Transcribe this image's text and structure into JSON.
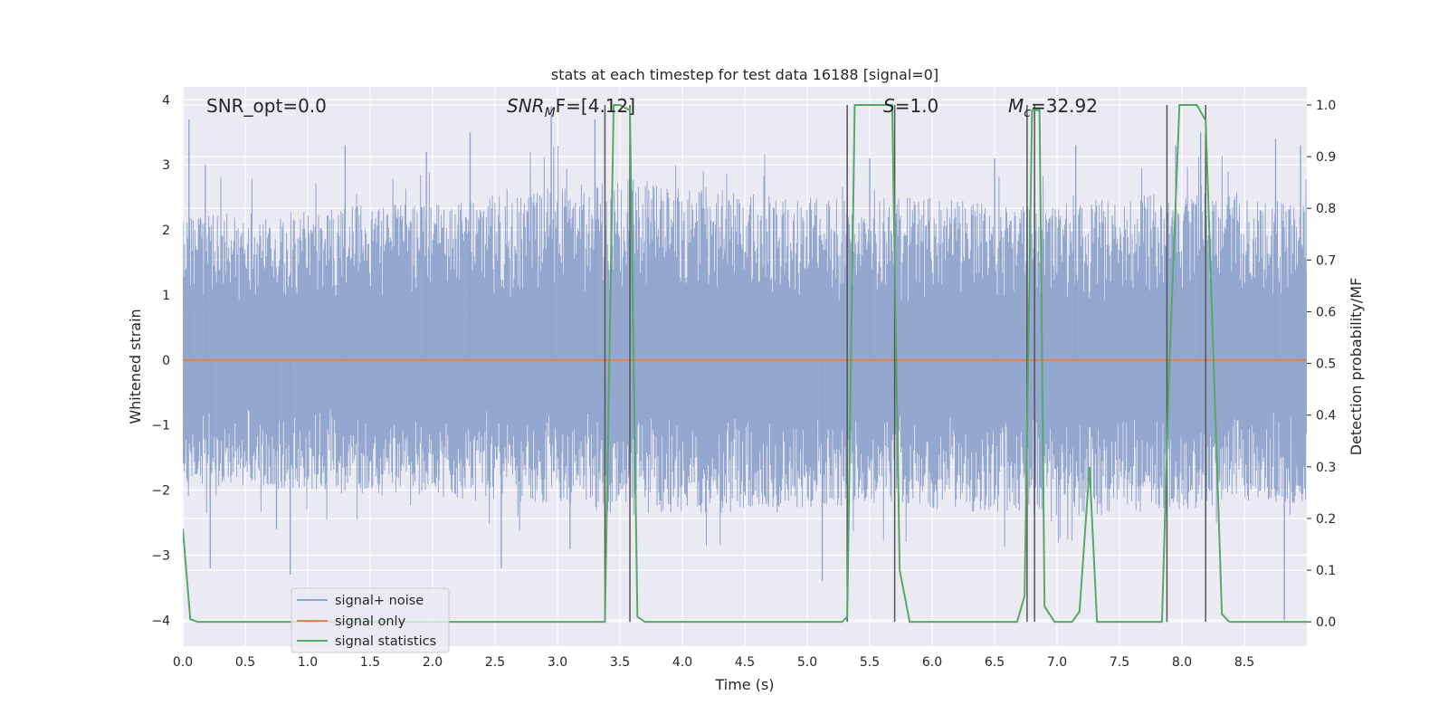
{
  "chart_data": {
    "type": "line",
    "title": "stats at each timestep for test data 16188 [signal=0]",
    "xlabel": "Time (s)",
    "ylabel_left": "Whitened strain",
    "ylabel_right": "Detection probability/MF",
    "xlim": [
      0.0,
      9.0
    ],
    "ylim_left": [
      -4.4,
      4.2
    ],
    "ylim_right": [
      -0.047,
      1.035
    ],
    "x_ticks": [
      "0.0",
      "0.5",
      "1.0",
      "1.5",
      "2.0",
      "2.5",
      "3.0",
      "3.5",
      "4.0",
      "4.5",
      "5.0",
      "5.5",
      "6.0",
      "6.5",
      "7.0",
      "7.5",
      "8.0",
      "8.5"
    ],
    "y_left_ticks": [
      "4",
      "3",
      "2",
      "1",
      "0",
      "−1",
      "−2",
      "−3",
      "−4"
    ],
    "y_right_ticks": [
      "1.0",
      "0.9",
      "0.8",
      "0.7",
      "0.6",
      "0.5",
      "0.4",
      "0.3",
      "0.2",
      "0.1",
      "0.0"
    ],
    "grid": true,
    "legend_position": "lower-left",
    "annotations": {
      "snr_opt": "SNR_opt=0.0",
      "snr_mf_a": "SNR",
      "snr_mf_sub": "M",
      "snr_mf_b": "F=[4.12]",
      "s_var": "S",
      "s_val": "=1.0",
      "mc_var": "M",
      "mc_sub": "c",
      "mc_val": "=32.92"
    },
    "series": [
      {
        "name": "signal+ noise",
        "axis": "left",
        "color": "#8fa3cc",
        "noise_envelope": [
          {
            "x": 0.0,
            "upper": 2.2,
            "lower": -1.9
          },
          {
            "x": 0.5,
            "upper": 2.3,
            "lower": -2.0
          },
          {
            "x": 1.0,
            "upper": 2.3,
            "lower": -2.0
          },
          {
            "x": 1.5,
            "upper": 2.4,
            "lower": -2.1
          },
          {
            "x": 2.0,
            "upper": 2.4,
            "lower": -2.1
          },
          {
            "x": 2.5,
            "upper": 2.5,
            "lower": -2.2
          },
          {
            "x": 3.0,
            "upper": 2.7,
            "lower": -2.2
          },
          {
            "x": 3.5,
            "upper": 2.8,
            "lower": -2.4
          },
          {
            "x": 4.0,
            "upper": 2.7,
            "lower": -2.4
          },
          {
            "x": 4.5,
            "upper": 2.6,
            "lower": -2.4
          },
          {
            "x": 5.0,
            "upper": 2.5,
            "lower": -2.3
          },
          {
            "x": 5.5,
            "upper": 2.5,
            "lower": -2.2
          },
          {
            "x": 6.0,
            "upper": 2.5,
            "lower": -2.3
          },
          {
            "x": 6.5,
            "upper": 2.4,
            "lower": -2.4
          },
          {
            "x": 7.0,
            "upper": 2.4,
            "lower": -2.4
          },
          {
            "x": 7.5,
            "upper": 2.5,
            "lower": -2.4
          },
          {
            "x": 8.0,
            "upper": 2.6,
            "lower": -2.3
          },
          {
            "x": 8.5,
            "upper": 2.5,
            "lower": -2.2
          },
          {
            "x": 9.0,
            "upper": 2.4,
            "lower": -2.2
          }
        ],
        "peaks": [
          {
            "x": 0.05,
            "y": 3.7
          },
          {
            "x": 0.18,
            "y": 3.0
          },
          {
            "x": 0.22,
            "y": -3.2
          },
          {
            "x": 0.75,
            "y": -2.6
          },
          {
            "x": 0.86,
            "y": -3.3
          },
          {
            "x": 1.3,
            "y": 3.3
          },
          {
            "x": 1.95,
            "y": 3.2
          },
          {
            "x": 2.3,
            "y": 3.5
          },
          {
            "x": 2.55,
            "y": -3.2
          },
          {
            "x": 2.95,
            "y": 3.9
          },
          {
            "x": 3.1,
            "y": -2.9
          },
          {
            "x": 3.3,
            "y": 3.7
          },
          {
            "x": 5.12,
            "y": -3.4
          },
          {
            "x": 5.5,
            "y": 3.1
          },
          {
            "x": 6.5,
            "y": 3.1
          },
          {
            "x": 7.15,
            "y": 3.3
          },
          {
            "x": 7.95,
            "y": 3.3
          },
          {
            "x": 8.15,
            "y": 3.5
          },
          {
            "x": 8.75,
            "y": 3.4
          },
          {
            "x": 8.95,
            "y": 3.3
          },
          {
            "x": 8.82,
            "y": -4.0
          }
        ]
      },
      {
        "name": "signal only",
        "axis": "left",
        "color": "#dd8452",
        "x": [
          0.0,
          9.0
        ],
        "y": [
          0.0,
          0.0
        ]
      },
      {
        "name": "signal statistics",
        "axis": "right",
        "color": "#55a868",
        "x": [
          0.0,
          0.06,
          0.12,
          3.38,
          3.45,
          3.5,
          3.58,
          3.64,
          3.7,
          5.28,
          5.32,
          5.38,
          5.68,
          5.74,
          5.82,
          6.68,
          6.74,
          6.8,
          6.86,
          6.9,
          6.98,
          7.12,
          7.18,
          7.26,
          7.32,
          7.84,
          7.9,
          7.98,
          8.12,
          8.19,
          8.32,
          8.38,
          9.0
        ],
        "y": [
          0.18,
          0.005,
          0.0,
          0.0,
          1.0,
          1.0,
          0.99,
          0.01,
          0.0,
          0.0,
          0.01,
          1.0,
          1.0,
          0.1,
          0.0,
          0.0,
          0.05,
          0.99,
          0.99,
          0.03,
          0.0,
          0.0,
          0.02,
          0.3,
          0.0,
          0.0,
          0.5,
          1.0,
          1.0,
          0.97,
          0.015,
          0.0,
          0.0
        ]
      }
    ],
    "vertical_markers_x": [
      3.38,
      3.58,
      5.32,
      5.7,
      6.76,
      6.82,
      7.88,
      8.19
    ]
  }
}
